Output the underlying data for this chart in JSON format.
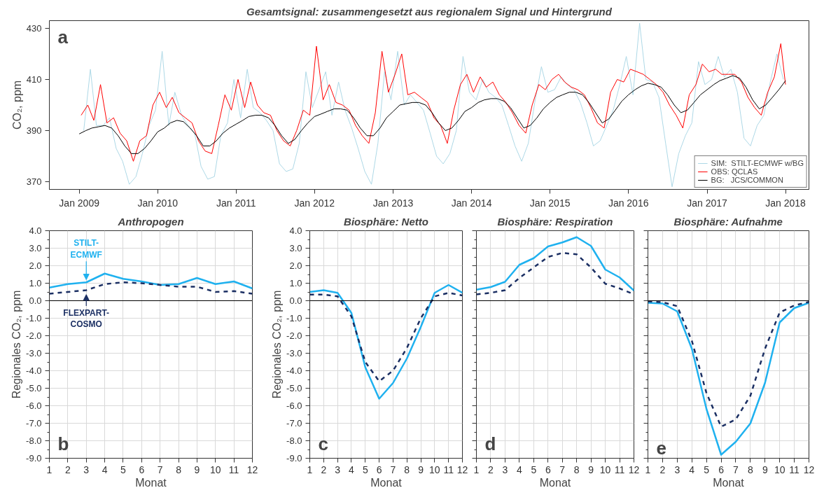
{
  "chart_data": [
    {
      "type": "line",
      "title": "Gesamtsignal: zusammengesetzt aus regionalem Signal und Hintergrund",
      "ylabel": "CO₂, ppm",
      "annotations": [
        "a"
      ],
      "legend": "bottom right",
      "xlim": [
        "2008-08-15",
        "2018-04-20"
      ],
      "ylim": [
        367,
        433
      ],
      "yticks": [
        370,
        390,
        410,
        430
      ],
      "xticks": [
        {
          "value": "2009-01-01",
          "label": "Jan 2009"
        },
        {
          "value": "2010-01-01",
          "label": "Jan 2010"
        },
        {
          "value": "2011-01-01",
          "label": "Jan 2011"
        },
        {
          "value": "2012-01-01",
          "label": "Jan 2012"
        },
        {
          "value": "2013-01-01",
          "label": "Jan 2013"
        },
        {
          "value": "2014-01-01",
          "label": "Jan 2014"
        },
        {
          "value": "2015-01-01",
          "label": "Jan 2015"
        },
        {
          "value": "2016-01-01",
          "label": "Jan 2016"
        },
        {
          "value": "2017-01-01",
          "label": "Jan 2017"
        },
        {
          "value": "2018-01-01",
          "label": "Jan 2018"
        }
      ],
      "series": [
        {
          "name": "SIM:  STILT-ECMWF w/BG",
          "color": "#add8e6",
          "x": [
            "2009-01-22",
            "2009-02-22",
            "2009-03-22",
            "2009-04-22",
            "2009-05-22",
            "2009-06-22",
            "2009-07-22",
            "2009-08-22",
            "2009-09-22",
            "2009-10-22",
            "2009-11-22",
            "2009-12-22",
            "2010-01-22",
            "2010-02-22",
            "2010-03-22",
            "2010-04-22",
            "2010-05-22",
            "2010-06-22",
            "2010-07-22",
            "2010-08-22",
            "2010-09-22",
            "2010-10-22",
            "2010-11-22",
            "2010-12-22",
            "2011-01-22",
            "2011-02-22",
            "2011-03-22",
            "2011-04-22",
            "2011-05-22",
            "2011-06-22",
            "2011-07-22",
            "2011-08-22",
            "2011-09-22",
            "2011-10-22",
            "2011-11-22",
            "2011-12-22",
            "2012-01-22",
            "2012-02-22",
            "2012-03-22",
            "2012-04-22",
            "2012-05-22",
            "2012-06-22",
            "2012-07-22",
            "2012-08-22",
            "2012-09-22",
            "2012-10-22",
            "2012-11-22",
            "2012-12-22",
            "2013-01-22",
            "2013-02-22",
            "2013-03-22",
            "2013-04-22",
            "2013-05-22",
            "2013-06-22",
            "2013-07-22",
            "2013-08-22",
            "2013-09-22",
            "2013-10-22",
            "2013-11-22",
            "2013-12-22",
            "2014-01-22",
            "2014-02-22",
            "2014-03-22",
            "2014-04-22",
            "2014-05-22",
            "2014-06-22",
            "2014-07-22",
            "2014-08-22",
            "2014-09-22",
            "2014-10-22",
            "2014-11-22",
            "2014-12-22",
            "2015-01-22",
            "2015-02-22",
            "2015-03-22",
            "2015-04-22",
            "2015-05-22",
            "2015-06-22",
            "2015-07-22",
            "2015-08-22",
            "2015-09-22",
            "2015-10-22",
            "2015-11-22",
            "2015-12-22",
            "2016-01-22",
            "2016-02-22",
            "2016-03-22",
            "2016-04-22",
            "2016-05-22",
            "2016-06-22",
            "2016-07-22",
            "2016-08-22",
            "2016-09-22",
            "2016-10-22",
            "2016-11-22",
            "2016-12-22",
            "2017-01-22",
            "2017-02-22",
            "2017-03-22",
            "2017-04-22",
            "2017-05-22",
            "2017-06-22",
            "2017-07-22",
            "2017-08-22",
            "2017-09-22",
            "2017-10-22",
            "2017-11-22",
            "2017-12-22"
          ],
          "values": [
            390,
            414,
            392,
            392,
            395,
            383,
            378,
            369,
            372,
            381,
            392,
            398,
            421,
            392,
            405,
            396,
            392,
            389,
            376,
            371,
            372,
            388,
            393,
            410,
            395,
            414,
            399,
            397,
            394,
            390,
            377,
            374,
            375,
            385,
            413,
            399,
            406,
            413,
            396,
            409,
            398,
            391,
            383,
            374,
            369,
            385,
            413,
            402,
            421,
            400,
            404,
            401,
            398,
            389,
            380,
            377,
            381,
            390,
            419,
            405,
            402,
            410,
            405,
            403,
            400,
            392,
            384,
            378,
            385,
            401,
            415,
            405,
            406,
            411,
            408,
            406,
            401,
            393,
            384,
            386,
            392,
            398,
            408,
            419,
            404,
            432,
            410,
            409,
            403,
            385,
            368,
            381,
            388,
            393,
            417,
            408,
            410,
            419,
            411,
            414,
            405,
            387,
            384,
            392,
            396,
            409,
            420,
            410
          ]
        },
        {
          "name": "OBS: QCLAS",
          "color": "#ff0000",
          "x": [
            "2009-01-10",
            "2009-02-10",
            "2009-03-10",
            "2009-04-10",
            "2009-05-10",
            "2009-06-10",
            "2009-07-10",
            "2009-08-10",
            "2009-09-10",
            "2009-10-10",
            "2009-11-10",
            "2009-12-10",
            "2010-01-10",
            "2010-02-10",
            "2010-03-10",
            "2010-04-10",
            "2010-05-10",
            "2010-06-10",
            "2010-07-10",
            "2010-08-10",
            "2010-09-10",
            "2010-10-10",
            "2010-11-10",
            "2010-12-10",
            "2011-01-10",
            "2011-02-10",
            "2011-03-10",
            "2011-04-10",
            "2011-05-10",
            "2011-06-10",
            "2011-07-10",
            "2011-08-10",
            "2011-09-10",
            "2011-10-10",
            "2011-11-10",
            "2011-12-10",
            "2012-01-10",
            "2012-02-10",
            "2012-03-10",
            "2012-04-10",
            "2012-05-10",
            "2012-06-10",
            "2012-07-10",
            "2012-08-10",
            "2012-09-10",
            "2012-10-10",
            "2012-11-10",
            "2012-12-10",
            "2013-01-10",
            "2013-02-10",
            "2013-03-10",
            "2013-04-10",
            "2013-05-10",
            "2013-06-10",
            "2013-07-10",
            "2013-08-10",
            "2013-09-10",
            "2013-10-10",
            "2013-11-10",
            "2013-12-10",
            "2014-01-10",
            "2014-02-10",
            "2014-03-10",
            "2014-04-10",
            "2014-05-10",
            "2014-06-10",
            "2014-07-10",
            "2014-08-10",
            "2014-09-10",
            "2014-10-10",
            "2014-11-10",
            "2014-12-10",
            "2015-01-10",
            "2015-02-10",
            "2015-03-10",
            "2015-04-10",
            "2015-05-10",
            "2015-06-10",
            "2015-07-10",
            "2015-08-10",
            "2015-09-10",
            "2015-10-10",
            "2015-11-10",
            "2015-12-10",
            "2016-01-10",
            "2016-02-10",
            "2016-03-10",
            "2016-04-10",
            "2016-05-10",
            "2016-06-10",
            "2016-07-10",
            "2016-08-10",
            "2016-09-10",
            "2016-10-10",
            "2016-11-10",
            "2016-12-10",
            "2017-01-10",
            "2017-02-10",
            "2017-03-10",
            "2017-04-10",
            "2017-05-10",
            "2017-06-10",
            "2017-07-10",
            "2017-08-10",
            "2017-09-10",
            "2017-10-10",
            "2017-11-10",
            "2017-12-10",
            "2018-01-01"
          ],
          "values": [
            396,
            400,
            394,
            408,
            393,
            395,
            389,
            386,
            378,
            386,
            388,
            400,
            405,
            399,
            403,
            397,
            395,
            393,
            386,
            382,
            381,
            392,
            404,
            398,
            410,
            399,
            409,
            400,
            397,
            396,
            390,
            386,
            384,
            390,
            398,
            396,
            423,
            402,
            408,
            401,
            400,
            398,
            392,
            388,
            385,
            397,
            421,
            405,
            412,
            420,
            404,
            405,
            403,
            401,
            395,
            392,
            385,
            398,
            408,
            412,
            405,
            411,
            407,
            409,
            404,
            401,
            397,
            392,
            389,
            400,
            408,
            406,
            410,
            412,
            409,
            407,
            406,
            404,
            399,
            393,
            391,
            405,
            410,
            409,
            414,
            413,
            412,
            410,
            408,
            405,
            400,
            396,
            391,
            404,
            408,
            416,
            413,
            414,
            412,
            412,
            412,
            409,
            403,
            399,
            396,
            405,
            411,
            424,
            408
          ]
        },
        {
          "name": "BG:   JCS/COMMON",
          "color": "#000000",
          "x": [
            "2009-01-01",
            "2009-02-01",
            "2009-03-01",
            "2009-04-01",
            "2009-05-01",
            "2009-06-01",
            "2009-07-01",
            "2009-08-01",
            "2009-09-01",
            "2009-10-01",
            "2009-11-01",
            "2009-12-01",
            "2010-01-01",
            "2010-02-01",
            "2010-03-01",
            "2010-04-01",
            "2010-05-01",
            "2010-06-01",
            "2010-07-01",
            "2010-08-01",
            "2010-09-01",
            "2010-10-01",
            "2010-11-01",
            "2010-12-01",
            "2011-01-01",
            "2011-02-01",
            "2011-03-01",
            "2011-04-01",
            "2011-05-01",
            "2011-06-01",
            "2011-07-01",
            "2011-08-01",
            "2011-09-01",
            "2011-10-01",
            "2011-11-01",
            "2011-12-01",
            "2012-01-01",
            "2012-02-01",
            "2012-03-01",
            "2012-04-01",
            "2012-05-01",
            "2012-06-01",
            "2012-07-01",
            "2012-08-01",
            "2012-09-01",
            "2012-10-01",
            "2012-11-01",
            "2012-12-01",
            "2013-01-01",
            "2013-02-01",
            "2013-03-01",
            "2013-04-01",
            "2013-05-01",
            "2013-06-01",
            "2013-07-01",
            "2013-08-01",
            "2013-09-01",
            "2013-10-01",
            "2013-11-01",
            "2013-12-01",
            "2014-01-01",
            "2014-02-01",
            "2014-03-01",
            "2014-04-01",
            "2014-05-01",
            "2014-06-01",
            "2014-07-01",
            "2014-08-01",
            "2014-09-01",
            "2014-10-01",
            "2014-11-01",
            "2014-12-01",
            "2015-01-01",
            "2015-02-01",
            "2015-03-01",
            "2015-04-01",
            "2015-05-01",
            "2015-06-01",
            "2015-07-01",
            "2015-08-01",
            "2015-09-01",
            "2015-10-01",
            "2015-11-01",
            "2015-12-01",
            "2016-01-01",
            "2016-02-01",
            "2016-03-01",
            "2016-04-01",
            "2016-05-01",
            "2016-06-01",
            "2016-07-01",
            "2016-08-01",
            "2016-09-01",
            "2016-10-01",
            "2016-11-01",
            "2016-12-01",
            "2017-01-01",
            "2017-02-01",
            "2017-03-01",
            "2017-04-01",
            "2017-05-01",
            "2017-06-01",
            "2017-07-01",
            "2017-08-01",
            "2017-09-01",
            "2017-10-01",
            "2017-11-01",
            "2017-12-01",
            "2018-01-01"
          ],
          "values": [
            388.7,
            390,
            391,
            391.5,
            392,
            391,
            388,
            384,
            381,
            381,
            383,
            386,
            389.5,
            391,
            393,
            394,
            393.5,
            391,
            388,
            384,
            384,
            386,
            389,
            391,
            392.5,
            394,
            395.5,
            396,
            396,
            395,
            392,
            388,
            385,
            386.5,
            390,
            393,
            395.5,
            396.5,
            397.5,
            398.5,
            398.5,
            398,
            395,
            391,
            388,
            388,
            391,
            395,
            397.5,
            400,
            400.5,
            401,
            401,
            400,
            397,
            393,
            390,
            391,
            394,
            397.5,
            399,
            401,
            402,
            402.5,
            402.5,
            401.5,
            399,
            395,
            391,
            392,
            395,
            398.5,
            401,
            403,
            404,
            405,
            405,
            404,
            401,
            397,
            393,
            394.5,
            398,
            401.5,
            404,
            406,
            407.5,
            408.5,
            408,
            407,
            404,
            400,
            397,
            398,
            401,
            404,
            406,
            408,
            409.5,
            410.5,
            411.5,
            410.5,
            407,
            402,
            398.5,
            400,
            403,
            406,
            409.5
          ]
        }
      ]
    },
    {
      "type": "line",
      "title": "Anthropogen",
      "xlabel": "Monat",
      "ylabel": "Regionales CO₂, ppm",
      "annotations": [
        "b"
      ],
      "grid": true,
      "x": [
        1,
        2,
        3,
        4,
        5,
        6,
        7,
        8,
        9,
        10,
        11,
        12
      ],
      "xlim": [
        1,
        12
      ],
      "xticks": [
        1,
        2,
        3,
        4,
        5,
        6,
        7,
        8,
        9,
        10,
        11,
        12
      ],
      "ylim": [
        -9,
        4
      ],
      "yticks": [
        {
          "value": -9,
          "label": "-9.0"
        },
        {
          "value": -8,
          "label": "-8.0"
        },
        {
          "value": -7,
          "label": "-7.0"
        },
        {
          "value": -6,
          "label": "-6.0"
        },
        {
          "value": -5,
          "label": "-5.0"
        },
        {
          "value": -4,
          "label": "-4.0"
        },
        {
          "value": -3,
          "label": "-3.0"
        },
        {
          "value": -2,
          "label": "-2.0"
        },
        {
          "value": -1,
          "label": "-1.0"
        },
        {
          "value": 0,
          "label": "0.0"
        },
        {
          "value": 1,
          "label": "1.0"
        },
        {
          "value": 2,
          "label": "2.0"
        },
        {
          "value": 3,
          "label": "3.0"
        },
        {
          "value": 4,
          "label": "4.0"
        }
      ],
      "ref_lines": [
        {
          "axis": "y",
          "value": 0,
          "color": "#000000"
        }
      ],
      "series": [
        {
          "name": "STILT-\nECMWF",
          "color": "#1fb1ef",
          "line_style": "solid",
          "values": [
            0.75,
            0.95,
            1.05,
            1.55,
            1.25,
            1.1,
            0.9,
            0.95,
            1.3,
            0.95,
            1.1,
            0.7
          ]
        },
        {
          "name": "FLEXPART-\nCOSMO",
          "color": "#1b2f63",
          "line_style": "dashed",
          "values": [
            0.4,
            0.5,
            0.6,
            0.95,
            1.05,
            1.0,
            0.9,
            0.8,
            0.8,
            0.5,
            0.55,
            0.4
          ]
        }
      ]
    },
    {
      "type": "line",
      "title": "Biosphäre: Netto",
      "xlabel": "Monat",
      "ylabel": "Regionales CO₂, ppm",
      "annotations": [
        "c"
      ],
      "grid": true,
      "x": [
        1,
        2,
        3,
        4,
        5,
        6,
        7,
        8,
        9,
        10,
        11,
        12
      ],
      "xlim": [
        1,
        12
      ],
      "xticks": [
        1,
        2,
        3,
        4,
        5,
        6,
        7,
        8,
        9,
        10,
        11,
        12
      ],
      "ylim": [
        -9,
        4
      ],
      "yticks": [
        {
          "value": -9,
          "label": "-9.0"
        },
        {
          "value": -8,
          "label": "-8.0"
        },
        {
          "value": -7,
          "label": "-7.0"
        },
        {
          "value": -6,
          "label": "-6.0"
        },
        {
          "value": -5,
          "label": "-5.0"
        },
        {
          "value": -4,
          "label": "-4.0"
        },
        {
          "value": -3,
          "label": "-3.0"
        },
        {
          "value": -2,
          "label": "-2.0"
        },
        {
          "value": -1,
          "label": "-1.0"
        },
        {
          "value": 0,
          "label": "0.0"
        },
        {
          "value": 1,
          "label": "1.0"
        },
        {
          "value": 2,
          "label": "2.0"
        },
        {
          "value": 3,
          "label": "3.0"
        },
        {
          "value": 4,
          "label": "4.0"
        }
      ],
      "ref_lines": [
        {
          "axis": "y",
          "value": 0,
          "color": "#000000"
        }
      ],
      "series": [
        {
          "color": "#1fb1ef",
          "line_style": "solid",
          "values": [
            0.5,
            0.6,
            0.45,
            -0.7,
            -3.8,
            -5.6,
            -4.7,
            -3.3,
            -1.5,
            0.45,
            0.9,
            0.45
          ]
        },
        {
          "color": "#1b2f63",
          "line_style": "dashed",
          "values": [
            0.35,
            0.35,
            0.25,
            -0.9,
            -3.5,
            -4.6,
            -4.0,
            -2.7,
            -1.0,
            0.25,
            0.45,
            0.3
          ]
        }
      ]
    },
    {
      "type": "line",
      "title": "Biosphäre: Respiration",
      "xlabel": "Monat",
      "annotations": [
        "d"
      ],
      "grid": true,
      "tick_labels": "x",
      "x": [
        1,
        2,
        3,
        4,
        5,
        6,
        7,
        8,
        9,
        10,
        11,
        12
      ],
      "xlim": [
        1,
        12
      ],
      "xticks": [
        1,
        2,
        3,
        4,
        5,
        6,
        7,
        8,
        9,
        10,
        11,
        12
      ],
      "ylim": [
        -9,
        4
      ],
      "yticks": [
        {
          "value": -9,
          "label": null
        },
        {
          "value": -8,
          "label": null
        },
        {
          "value": -7,
          "label": null
        },
        {
          "value": -6,
          "label": null
        },
        {
          "value": -5,
          "label": null
        },
        {
          "value": -4,
          "label": null
        },
        {
          "value": -3,
          "label": null
        },
        {
          "value": -2,
          "label": null
        },
        {
          "value": -1,
          "label": null
        },
        {
          "value": 0,
          "label": null
        },
        {
          "value": 1,
          "label": null
        },
        {
          "value": 2,
          "label": null
        },
        {
          "value": 3,
          "label": null
        },
        {
          "value": 4,
          "label": null
        }
      ],
      "ref_lines": [
        {
          "axis": "y",
          "value": 0,
          "color": "#000000"
        }
      ],
      "series": [
        {
          "color": "#1fb1ef",
          "line_style": "solid",
          "values": [
            0.63,
            0.78,
            1.08,
            2.05,
            2.43,
            3.1,
            3.33,
            3.63,
            3.13,
            1.78,
            1.33,
            0.58
          ]
        },
        {
          "color": "#1b2f63",
          "line_style": "dashed",
          "values": [
            0.36,
            0.45,
            0.6,
            1.3,
            1.9,
            2.5,
            2.73,
            2.65,
            1.9,
            0.97,
            0.7,
            0.37
          ]
        }
      ]
    },
    {
      "type": "line",
      "title": "Biosphäre: Aufnahme",
      "xlabel": "Monat",
      "annotations": [
        "e"
      ],
      "grid": true,
      "tick_labels": "x",
      "x": [
        1,
        2,
        3,
        4,
        5,
        6,
        7,
        8,
        9,
        10,
        11,
        12
      ],
      "xlim": [
        1,
        12
      ],
      "xticks": [
        1,
        2,
        3,
        4,
        5,
        6,
        7,
        8,
        9,
        10,
        11,
        12
      ],
      "ylim": [
        -9,
        4
      ],
      "yticks": [
        {
          "value": -9,
          "label": null
        },
        {
          "value": -8,
          "label": null
        },
        {
          "value": -7,
          "label": null
        },
        {
          "value": -6,
          "label": null
        },
        {
          "value": -5,
          "label": null
        },
        {
          "value": -4,
          "label": null
        },
        {
          "value": -3,
          "label": null
        },
        {
          "value": -2,
          "label": null
        },
        {
          "value": -1,
          "label": null
        },
        {
          "value": 0,
          "label": null
        },
        {
          "value": 1,
          "label": null
        },
        {
          "value": 2,
          "label": null
        },
        {
          "value": 3,
          "label": null
        },
        {
          "value": 4,
          "label": null
        }
      ],
      "ref_lines": [
        {
          "axis": "y",
          "value": 0,
          "color": "#000000"
        }
      ],
      "series": [
        {
          "color": "#1fb1ef",
          "line_style": "solid",
          "values": [
            -0.12,
            -0.16,
            -0.61,
            -2.74,
            -6.19,
            -8.8,
            -8.06,
            -7.01,
            -4.69,
            -1.24,
            -0.42,
            -0.12
          ]
        },
        {
          "color": "#1b2f63",
          "line_style": "dashed",
          "values": [
            -0.04,
            -0.09,
            -0.31,
            -2.29,
            -5.28,
            -7.2,
            -6.78,
            -5.43,
            -2.74,
            -0.67,
            -0.27,
            -0.07
          ]
        }
      ]
    }
  ]
}
